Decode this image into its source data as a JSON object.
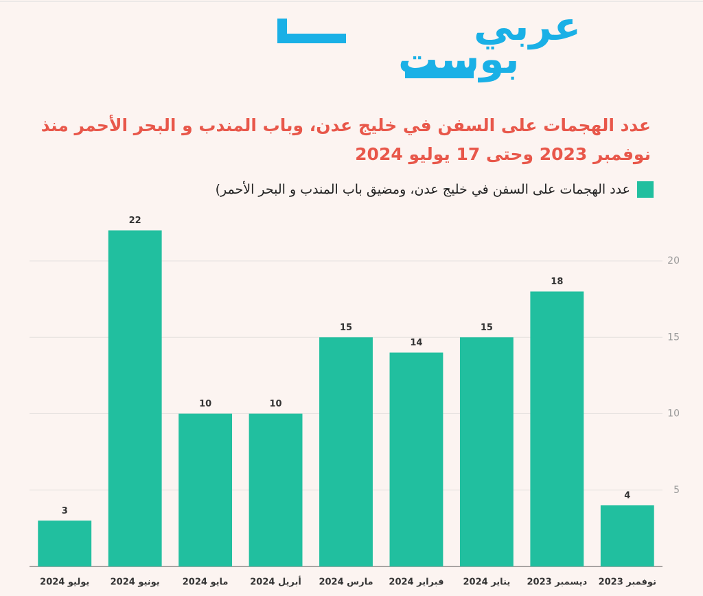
{
  "logo": {
    "line1": "عربي",
    "line2": "بوست"
  },
  "chart_data": {
    "type": "bar",
    "title": "عدد الهجمات على السفن في خليج عدن، وباب المندب و البحر الأحمر منذ نوفمبر 2023 وحتى 17 يوليو 2024",
    "categories": [
      "يوليو 2024",
      "يونيو 2024",
      "مايو 2024",
      "أبريل 2024",
      "مارس 2024",
      "فبراير 2024",
      "يناير 2024",
      "ديسمبر 2023",
      "نوفمبر 2023"
    ],
    "series": [
      {
        "name": "عدد الهجمات على السفن في خليج عدن، ومضيق باب المندب و البحر الأحمر)",
        "color": "#21bf9f",
        "values": [
          3,
          22,
          10,
          10,
          15,
          14,
          15,
          18,
          4
        ]
      }
    ],
    "ylim": [
      0,
      22
    ],
    "yticks": [
      5,
      10,
      15,
      20
    ],
    "grid": true
  }
}
